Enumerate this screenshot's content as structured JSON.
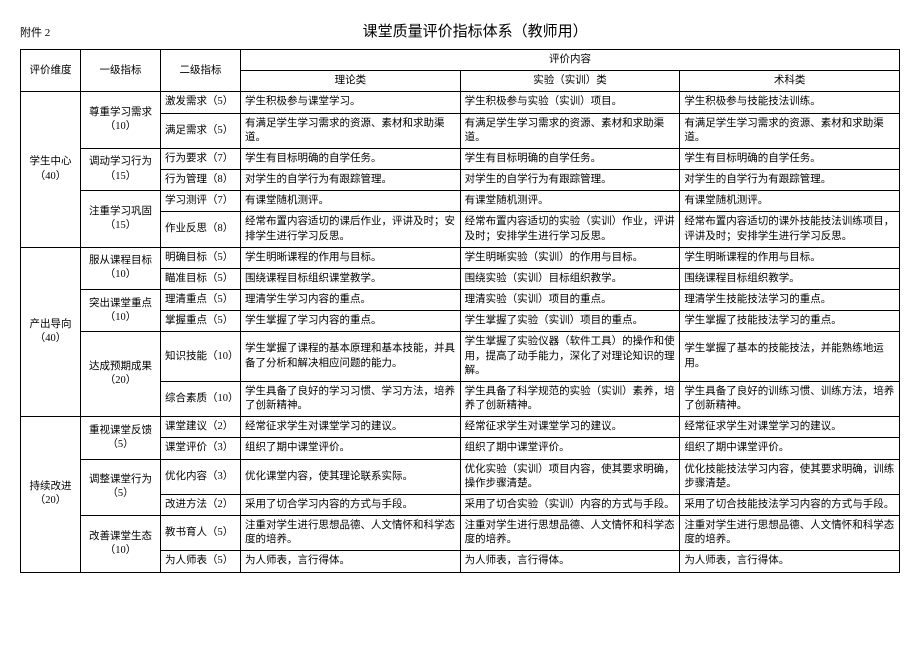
{
  "attachment_label": "附件 2",
  "title": "课堂质量评价指标体系（教师用）",
  "columns": {
    "dim": "评价维度",
    "l1": "一级指标",
    "l2": "二级指标",
    "content_group": "评价内容",
    "theory": "理论类",
    "experiment": "实验（实训）类",
    "skill": "术科类"
  },
  "dims": [
    {
      "name": "学生中心（40）",
      "l1": [
        {
          "name": "尊重学习需求（10）",
          "rows": [
            {
              "l2": "激发需求（5）",
              "theory": "学生积极参与课堂学习。",
              "exp": "学生积极参与实验（实训）项目。",
              "skill": "学生积极参与技能技法训练。"
            },
            {
              "l2": "满足需求（5）",
              "theory": "有满足学生学习需求的资源、素材和求助渠道。",
              "exp": "有满足学生学习需求的资源、素材和求助渠道。",
              "skill": "有满足学生学习需求的资源、素材和求助渠道。"
            }
          ]
        },
        {
          "name": "调动学习行为（15）",
          "rows": [
            {
              "l2": "行为要求（7）",
              "theory": "学生有目标明确的自学任务。",
              "exp": "学生有目标明确的自学任务。",
              "skill": "学生有目标明确的自学任务。"
            },
            {
              "l2": "行为管理（8）",
              "theory": "对学生的自学行为有跟踪管理。",
              "exp": "对学生的自学行为有跟踪管理。",
              "skill": "对学生的自学行为有跟踪管理。"
            }
          ]
        },
        {
          "name": "注重学习巩固（15）",
          "rows": [
            {
              "l2": "学习测评（7）",
              "theory": "有课堂随机测评。",
              "exp": "有课堂随机测评。",
              "skill": "有课堂随机测评。"
            },
            {
              "l2": "作业反思（8）",
              "theory": "经常布置内容适切的课后作业，评讲及时；安排学生进行学习反思。",
              "exp": "经常布置内容适切的实验（实训）作业，评讲及时；安排学生进行学习反思。",
              "skill": "经常布置内容适切的课外技能技法训练项目，评讲及时；安排学生进行学习反思。"
            }
          ]
        }
      ]
    },
    {
      "name": "产出导向（40）",
      "l1": [
        {
          "name": "服从课程目标（10）",
          "rows": [
            {
              "l2": "明确目标（5）",
              "theory": "学生明晰课程的作用与目标。",
              "exp": "学生明晰实验（实训）的作用与目标。",
              "skill": "学生明晰课程的作用与目标。"
            },
            {
              "l2": "瞄准目标（5）",
              "theory": "围绕课程目标组织课堂教学。",
              "exp": "围绕实验（实训）目标组织教学。",
              "skill": "围绕课程目标组织教学。"
            }
          ]
        },
        {
          "name": "突出课堂重点（10）",
          "rows": [
            {
              "l2": "理清重点（5）",
              "theory": "理清学生学习内容的重点。",
              "exp": "理清实验（实训）项目的重点。",
              "skill": "理清学生技能技法学习的重点。"
            },
            {
              "l2": "掌握重点（5）",
              "theory": "学生掌握了学习内容的重点。",
              "exp": "学生掌握了实验（实训）项目的重点。",
              "skill": "学生掌握了技能技法学习的重点。"
            }
          ]
        },
        {
          "name": "达成预期成果（20）",
          "rows": [
            {
              "l2": "知识技能（10）",
              "theory": "学生掌握了课程的基本原理和基本技能，并具备了分析和解决相应问题的能力。",
              "exp": "学生掌握了实验仪器（软件工具）的操作和使用，提高了动手能力，深化了对理论知识的理解。",
              "skill": "学生掌握了基本的技能技法，并能熟练地运用。"
            },
            {
              "l2": "综合素质（10）",
              "theory": "学生具备了良好的学习习惯、学习方法，培养了创新精神。",
              "exp": "学生具备了科学规范的实验（实训）素养，培养了创新精神。",
              "skill": "学生具备了良好的训练习惯、训练方法，培养了创新精神。"
            }
          ]
        }
      ]
    },
    {
      "name": "持续改进（20）",
      "l1": [
        {
          "name": "重视课堂反馈（5）",
          "rows": [
            {
              "l2": "课堂建议（2）",
              "theory": "经常征求学生对课堂学习的建议。",
              "exp": "经常征求学生对课堂学习的建议。",
              "skill": "经常征求学生对课堂学习的建议。"
            },
            {
              "l2": "课堂评价（3）",
              "theory": "组织了期中课堂评价。",
              "exp": "组织了期中课堂评价。",
              "skill": "组织了期中课堂评价。"
            }
          ]
        },
        {
          "name": "调整课堂行为（5）",
          "rows": [
            {
              "l2": "优化内容（3）",
              "theory": "优化课堂内容，使其理论联系实际。",
              "exp": "优化实验（实训）项目内容，使其要求明确，操作步骤清楚。",
              "skill": "优化技能技法学习内容，使其要求明确，训练步骤清楚。"
            },
            {
              "l2": "改进方法（2）",
              "theory": "采用了切合学习内容的方式与手段。",
              "exp": "采用了切合实验（实训）内容的方式与手段。",
              "skill": "采用了切合技能技法学习内容的方式与手段。"
            }
          ]
        },
        {
          "name": "改善课堂生态（10）",
          "rows": [
            {
              "l2": "教书育人（5）",
              "theory": "注重对学生进行思想品德、人文情怀和科学态度的培养。",
              "exp": "注重对学生进行思想品德、人文情怀和科学态度的培养。",
              "skill": "注重对学生进行思想品德、人文情怀和科学态度的培养。"
            },
            {
              "l2": "为人师表（5）",
              "theory": "为人师表，言行得体。",
              "exp": "为人师表，言行得体。",
              "skill": "为人师表，言行得体。"
            }
          ]
        }
      ]
    }
  ]
}
